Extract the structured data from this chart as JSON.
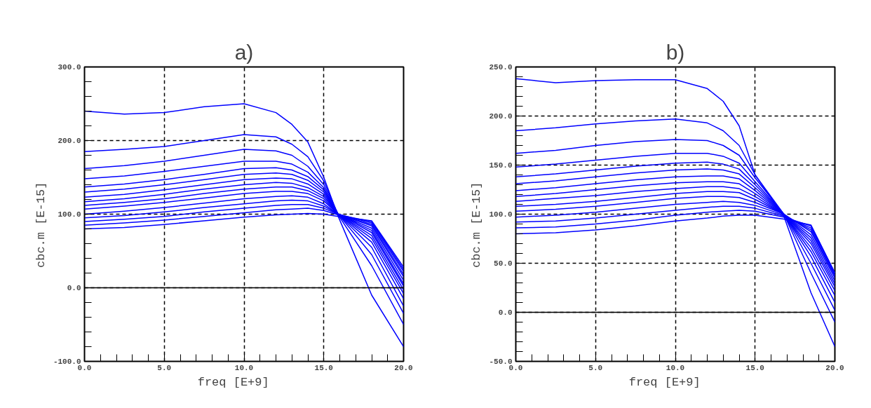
{
  "chart_data": [
    {
      "type": "line",
      "title": "a)",
      "xlabel": "freq    [E+9]",
      "ylabel": "cbc.m    [E-15]",
      "x": [
        0,
        2.5,
        5,
        7.5,
        10,
        12,
        13,
        14,
        15,
        15.9,
        18,
        20
      ],
      "xlim": [
        0,
        20
      ],
      "xticks": [
        {
          "value": 0,
          "label": "0.0"
        },
        {
          "value": 5,
          "label": "5.0"
        },
        {
          "value": 10,
          "label": "10.0"
        },
        {
          "value": 15,
          "label": "15.0"
        },
        {
          "value": 20,
          "label": "20.0"
        }
      ],
      "ylim": [
        -100,
        300
      ],
      "yticks": [
        {
          "value": -100,
          "label": "-100.0"
        },
        {
          "value": 0,
          "label": "0.0"
        },
        {
          "value": 100,
          "label": "100.0"
        },
        {
          "value": 200,
          "label": "200.0"
        },
        {
          "value": 300,
          "label": "300.0"
        }
      ],
      "grid": true,
      "line_style": "solid",
      "marker": "none",
      "ref_lines": [
        {
          "axis": "y",
          "value": 0,
          "label": null,
          "color": "#000000",
          "line_style": "solid"
        }
      ],
      "series": [
        {
          "color": "#0000ff",
          "values": [
            240,
            236,
            238,
            246,
            250,
            238,
            222,
            198,
            150,
            97,
            -10,
            -80
          ]
        },
        {
          "color": "#0000ff",
          "values": [
            185,
            188,
            192,
            200,
            208,
            205,
            195,
            178,
            145,
            99,
            30,
            -50
          ]
        },
        {
          "color": "#0000ff",
          "values": [
            162,
            166,
            172,
            180,
            188,
            186,
            180,
            165,
            140,
            100,
            45,
            -35
          ]
        },
        {
          "color": "#0000ff",
          "values": [
            148,
            152,
            158,
            165,
            172,
            172,
            168,
            157,
            136,
            100,
            55,
            -25
          ]
        },
        {
          "color": "#0000ff",
          "values": [
            137,
            141,
            147,
            154,
            162,
            163,
            160,
            151,
            133,
            100,
            62,
            -15
          ]
        },
        {
          "color": "#0000ff",
          "values": [
            130,
            134,
            140,
            147,
            154,
            156,
            154,
            146,
            130,
            100,
            67,
            -8
          ]
        },
        {
          "color": "#0000ff",
          "values": [
            123,
            127,
            133,
            140,
            147,
            149,
            148,
            141,
            127,
            100,
            71,
            -3
          ]
        },
        {
          "color": "#0000ff",
          "values": [
            117,
            121,
            127,
            134,
            140,
            143,
            142,
            136,
            124,
            100,
            75,
            2
          ]
        },
        {
          "color": "#0000ff",
          "values": [
            112,
            116,
            121,
            128,
            134,
            137,
            137,
            132,
            121,
            100,
            78,
            5
          ]
        },
        {
          "color": "#0000ff",
          "values": [
            107,
            111,
            116,
            122,
            128,
            131,
            131,
            128,
            118,
            100,
            81,
            10
          ]
        },
        {
          "color": "#0000ff",
          "values": [
            100,
            104,
            109,
            115,
            121,
            124,
            125,
            123,
            114,
            100,
            84,
            15
          ]
        },
        {
          "color": "#0000ff",
          "values": [
            95,
            98,
            103,
            109,
            114,
            118,
            119,
            118,
            111,
            100,
            86,
            18
          ]
        },
        {
          "color": "#0000ff",
          "values": [
            90,
            93,
            97,
            103,
            108,
            112,
            113,
            113,
            108,
            100,
            88,
            22
          ]
        },
        {
          "color": "#0000ff",
          "values": [
            85,
            88,
            92,
            97,
            102,
            106,
            107,
            108,
            105,
            99,
            90,
            25
          ]
        },
        {
          "color": "#0000ff",
          "values": [
            80,
            82,
            86,
            91,
            96,
            99,
            100,
            101,
            100,
            97,
            91,
            28
          ]
        }
      ]
    },
    {
      "type": "line",
      "title": "b)",
      "xlabel": "freq    [E+9]",
      "ylabel": "cbc.m    [E-15]",
      "x": [
        0,
        2.5,
        5,
        7.5,
        10,
        12,
        13,
        14,
        15,
        16.8,
        18.5,
        20
      ],
      "xlim": [
        0,
        20
      ],
      "xticks": [
        {
          "value": 0,
          "label": "0.0"
        },
        {
          "value": 5,
          "label": "5.0"
        },
        {
          "value": 10,
          "label": "10.0"
        },
        {
          "value": 15,
          "label": "15.0"
        },
        {
          "value": 20,
          "label": "20.0"
        }
      ],
      "ylim": [
        -50,
        250
      ],
      "yticks": [
        {
          "value": -50,
          "label": "-50.0"
        },
        {
          "value": 0,
          "label": "0.0"
        },
        {
          "value": 50,
          "label": "50.0"
        },
        {
          "value": 100,
          "label": "100.0"
        },
        {
          "value": 150,
          "label": "150.0"
        },
        {
          "value": 200,
          "label": "200.0"
        },
        {
          "value": 250,
          "label": "250.0"
        }
      ],
      "grid": true,
      "line_style": "solid",
      "marker": "none",
      "ref_lines": [
        {
          "axis": "y",
          "value": 0,
          "label": null,
          "color": "#000000",
          "line_style": "solid"
        }
      ],
      "series": [
        {
          "color": "#0000ff",
          "values": [
            238,
            234,
            236,
            237,
            237,
            228,
            215,
            190,
            140,
            98,
            20,
            -35
          ]
        },
        {
          "color": "#0000ff",
          "values": [
            185,
            188,
            192,
            195,
            197,
            193,
            185,
            170,
            140,
            100,
            40,
            -10
          ]
        },
        {
          "color": "#0000ff",
          "values": [
            162,
            165,
            170,
            174,
            176,
            175,
            170,
            160,
            137,
            100,
            50,
            2
          ]
        },
        {
          "color": "#0000ff",
          "values": [
            148,
            151,
            155,
            159,
            162,
            162,
            159,
            152,
            133,
            100,
            57,
            10
          ]
        },
        {
          "color": "#0000ff",
          "values": [
            138,
            141,
            145,
            149,
            152,
            153,
            151,
            146,
            130,
            100,
            62,
            17
          ]
        },
        {
          "color": "#0000ff",
          "values": [
            131,
            134,
            138,
            142,
            145,
            146,
            145,
            141,
            127,
            100,
            66,
            22
          ]
        },
        {
          "color": "#0000ff",
          "values": [
            124,
            127,
            131,
            135,
            138,
            139,
            139,
            136,
            124,
            100,
            70,
            26
          ]
        },
        {
          "color": "#0000ff",
          "values": [
            118,
            121,
            125,
            129,
            132,
            133,
            133,
            131,
            121,
            100,
            73,
            29
          ]
        },
        {
          "color": "#0000ff",
          "values": [
            113,
            116,
            119,
            123,
            126,
            128,
            128,
            126,
            118,
            100,
            76,
            32
          ]
        },
        {
          "color": "#0000ff",
          "values": [
            108,
            110,
            113,
            117,
            121,
            123,
            123,
            122,
            115,
            100,
            79,
            35
          ]
        },
        {
          "color": "#0000ff",
          "values": [
            103,
            105,
            108,
            112,
            116,
            118,
            118,
            117,
            112,
            100,
            82,
            37
          ]
        },
        {
          "color": "#0000ff",
          "values": [
            97,
            99,
            102,
            106,
            110,
            112,
            113,
            112,
            109,
            99,
            84,
            38
          ]
        },
        {
          "color": "#0000ff",
          "values": [
            92,
            93,
            96,
            100,
            104,
            107,
            108,
            108,
            106,
            98,
            86,
            40
          ]
        },
        {
          "color": "#0000ff",
          "values": [
            86,
            87,
            90,
            94,
            99,
            102,
            103,
            104,
            103,
            97,
            88,
            40
          ]
        },
        {
          "color": "#0000ff",
          "values": [
            80,
            81,
            84,
            88,
            93,
            96,
            98,
            99,
            99,
            95,
            89,
            40
          ]
        }
      ]
    }
  ]
}
